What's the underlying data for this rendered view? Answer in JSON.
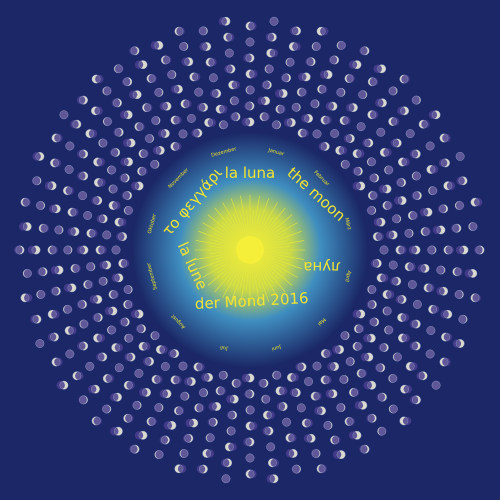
{
  "titles": {
    "italian": "la luna",
    "english": "the moon",
    "russian": "луна",
    "german": "der Mond 2016",
    "french": "la lune",
    "greek": "το φεγγάρι"
  },
  "months": [
    "Januar",
    "Februar",
    "März",
    "April",
    "Mai",
    "Juni",
    "Juli",
    "August",
    "September",
    "Oktober",
    "November",
    "Dezember"
  ]
}
